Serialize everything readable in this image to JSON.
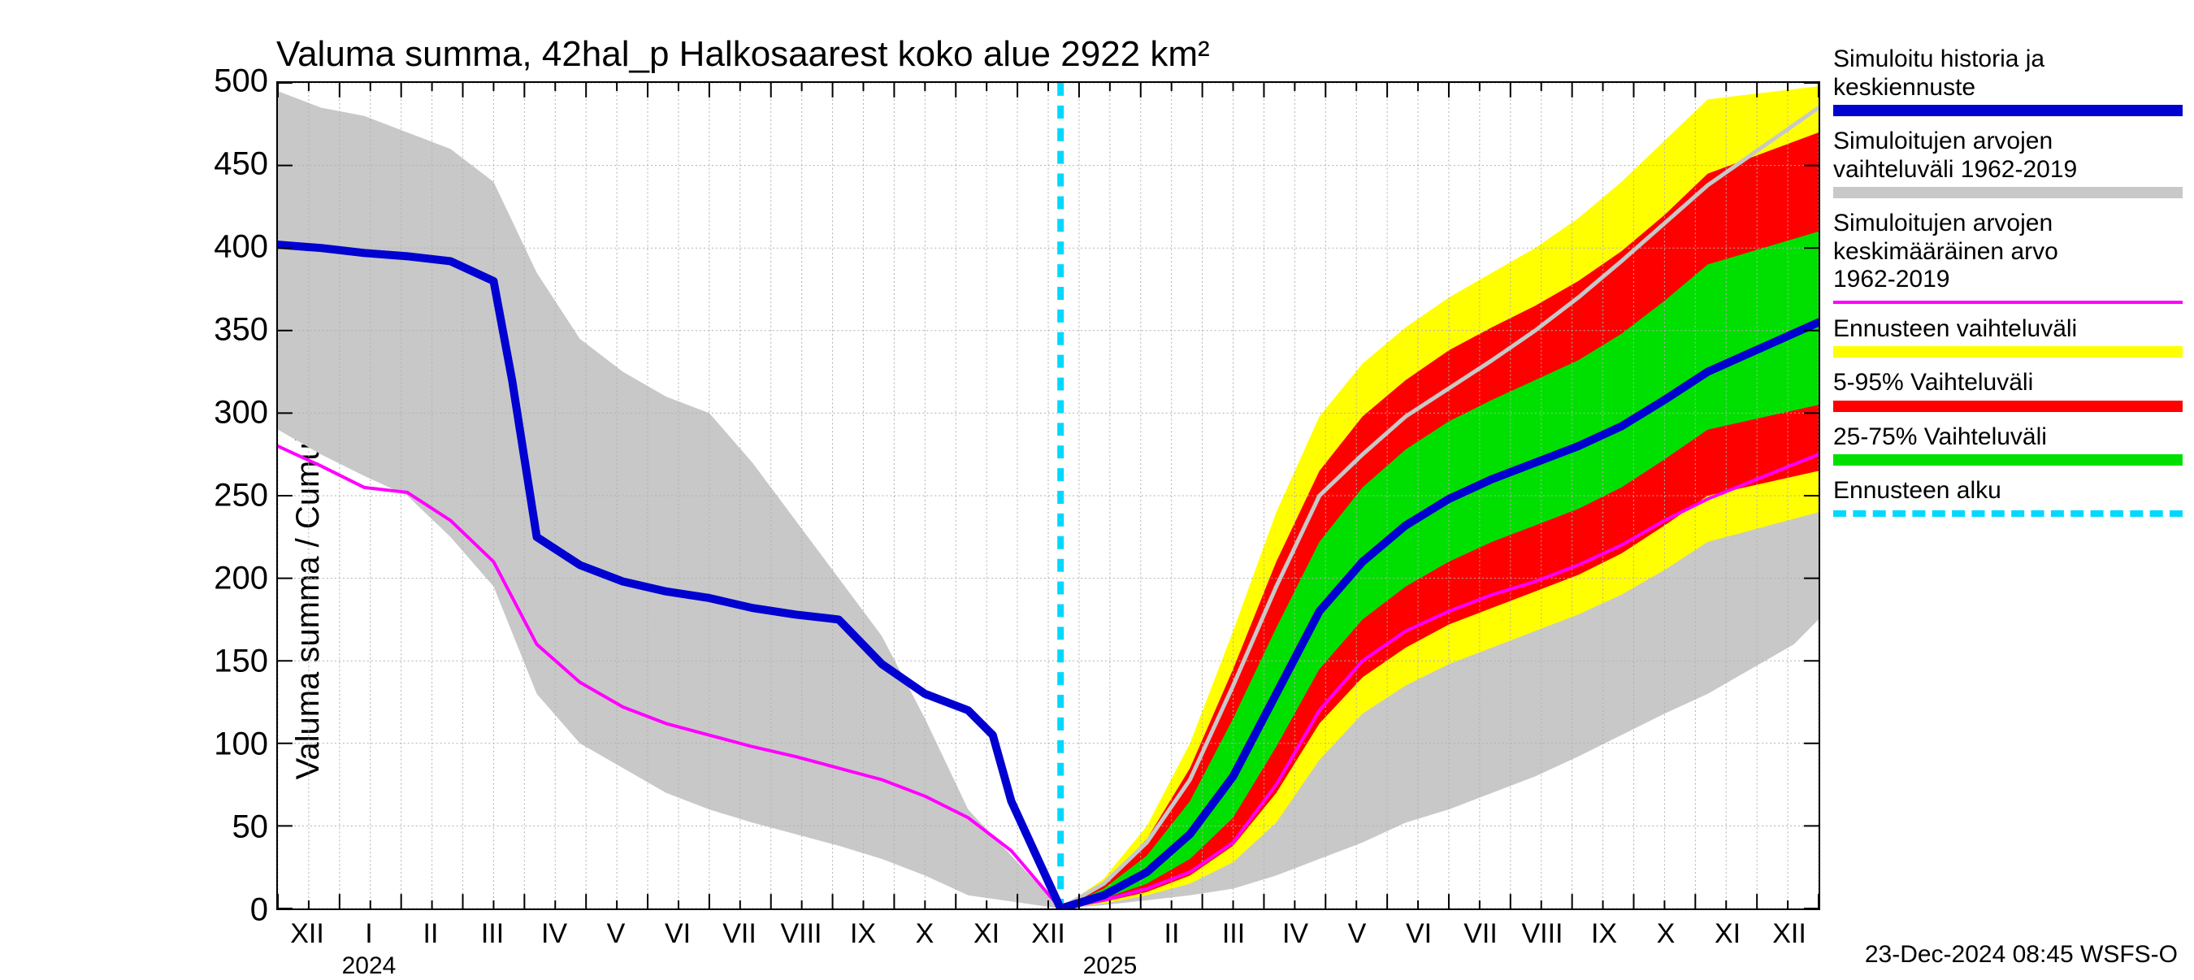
{
  "chart": {
    "type": "line-area",
    "title": "Valuma summa, 42hal_p Halkosaarest koko alue 2922 km²",
    "ylabel": "Valuma summa / Cumulative runoff     mm",
    "title_fontsize": 44,
    "label_fontsize": 40,
    "tick_fontsize": 40,
    "xtick_fontsize": 34,
    "background_color": "#ffffff",
    "grid_color": "#b0b0b0",
    "border_color": "#000000",
    "ylim": [
      0,
      500
    ],
    "yticks": [
      0,
      50,
      100,
      150,
      200,
      250,
      300,
      350,
      400,
      450,
      500
    ],
    "x_index_range": [
      0,
      25
    ],
    "x_labels": [
      "XII",
      "I",
      "II",
      "III",
      "IV",
      "V",
      "VI",
      "VII",
      "VIII",
      "IX",
      "X",
      "XI",
      "XII",
      "I",
      "II",
      "III",
      "IV",
      "V",
      "VI",
      "VII",
      "VIII",
      "IX",
      "X",
      "XI",
      "XII"
    ],
    "year_labels": [
      {
        "label": "2024",
        "x_index": 1.5
      },
      {
        "label": "2025",
        "x_index": 13.5
      }
    ],
    "forecast_start_index": 12.7,
    "series": {
      "history_range": {
        "type": "band",
        "color": "#c8c8c8",
        "upper": [
          495,
          485,
          480,
          470,
          460,
          440,
          385,
          345,
          325,
          310,
          300,
          270,
          235,
          200,
          165,
          115,
          60,
          0,
          15,
          40,
          78,
          135,
          195,
          250,
          275,
          298,
          315,
          332,
          350,
          370,
          392,
          415,
          438,
          460,
          485,
          498
        ],
        "lower": [
          290,
          275,
          262,
          250,
          225,
          195,
          130,
          100,
          85,
          70,
          60,
          52,
          45,
          38,
          30,
          20,
          8,
          0,
          2,
          5,
          8,
          12,
          20,
          30,
          40,
          52,
          60,
          70,
          80,
          92,
          105,
          118,
          130,
          145,
          160,
          175
        ],
        "x": [
          0,
          0.7,
          1.4,
          2.1,
          2.8,
          3.5,
          4.2,
          4.9,
          5.6,
          6.3,
          7.0,
          7.7,
          8.4,
          9.1,
          9.8,
          10.5,
          11.2,
          12.7,
          13.4,
          14.1,
          14.8,
          15.5,
          16.2,
          16.9,
          17.6,
          18.3,
          19.0,
          19.7,
          20.4,
          21.1,
          21.8,
          22.5,
          23.2,
          23.9,
          24.6,
          25.0
        ]
      },
      "forecast_full": {
        "type": "band",
        "color": "#ffff00",
        "upper": [
          0,
          18,
          50,
          100,
          168,
          240,
          298,
          330,
          352,
          370,
          385,
          400,
          418,
          440,
          465,
          490,
          498
        ],
        "lower": [
          0,
          3,
          8,
          15,
          28,
          52,
          90,
          118,
          135,
          148,
          158,
          168,
          178,
          190,
          205,
          222,
          240
        ],
        "x": [
          12.7,
          13.4,
          14.1,
          14.8,
          15.5,
          16.2,
          16.9,
          17.6,
          18.3,
          19.0,
          19.7,
          20.4,
          21.1,
          21.8,
          22.5,
          23.2,
          25.0
        ]
      },
      "forecast_5_95": {
        "type": "band",
        "color": "#ff0000",
        "upper": [
          0,
          15,
          42,
          85,
          145,
          210,
          265,
          298,
          320,
          338,
          352,
          365,
          380,
          398,
          420,
          445,
          470
        ],
        "lower": [
          0,
          4,
          10,
          20,
          38,
          70,
          112,
          140,
          158,
          172,
          182,
          192,
          202,
          215,
          232,
          250,
          265
        ],
        "x": [
          12.7,
          13.4,
          14.1,
          14.8,
          15.5,
          16.2,
          16.9,
          17.6,
          18.3,
          19.0,
          19.7,
          20.4,
          21.1,
          21.8,
          22.5,
          23.2,
          25.0
        ]
      },
      "forecast_25_75": {
        "type": "band",
        "color": "#00e000",
        "upper": [
          0,
          12,
          32,
          65,
          115,
          170,
          222,
          255,
          278,
          295,
          308,
          320,
          332,
          348,
          368,
          390,
          410
        ],
        "lower": [
          0,
          6,
          15,
          30,
          55,
          98,
          145,
          175,
          195,
          210,
          222,
          232,
          242,
          255,
          272,
          290,
          305
        ],
        "x": [
          12.7,
          13.4,
          14.1,
          14.8,
          15.5,
          16.2,
          16.9,
          17.6,
          18.3,
          19.0,
          19.7,
          20.4,
          21.1,
          21.8,
          22.5,
          23.2,
          25.0
        ]
      },
      "history_upper_line": {
        "type": "line",
        "color": "#c8c8c8",
        "width": 5,
        "x": [
          12.7,
          13.4,
          14.1,
          14.8,
          15.5,
          16.2,
          16.9,
          17.6,
          18.3,
          19.0,
          19.7,
          20.4,
          21.1,
          21.8,
          22.5,
          23.2,
          25.0
        ],
        "y": [
          0,
          15,
          40,
          78,
          135,
          195,
          250,
          275,
          298,
          315,
          332,
          350,
          370,
          392,
          415,
          438,
          485
        ]
      },
      "mean_history": {
        "type": "line",
        "color": "#ff00ff",
        "width": 4,
        "x": [
          0,
          0.7,
          1.4,
          2.1,
          2.8,
          3.5,
          4.2,
          4.9,
          5.6,
          6.3,
          7.0,
          7.7,
          8.4,
          9.1,
          9.8,
          10.5,
          11.2,
          11.9,
          12.7,
          13.4,
          14.1,
          14.8,
          15.5,
          16.2,
          16.9,
          17.6,
          18.3,
          19.0,
          19.7,
          20.4,
          21.1,
          21.8,
          22.5,
          23.2,
          25.0
        ],
        "y": [
          280,
          268,
          255,
          252,
          235,
          210,
          160,
          137,
          122,
          112,
          105,
          98,
          92,
          85,
          78,
          68,
          55,
          35,
          0,
          5,
          12,
          22,
          40,
          75,
          120,
          150,
          168,
          180,
          190,
          198,
          208,
          220,
          235,
          248,
          275
        ]
      },
      "simulated": {
        "type": "line",
        "color": "#0000d0",
        "width": 10,
        "x": [
          0,
          0.7,
          1.4,
          2.1,
          2.8,
          3.5,
          3.8,
          4.2,
          4.9,
          5.6,
          6.3,
          7.0,
          7.7,
          8.4,
          9.1,
          9.8,
          10.5,
          11.2,
          11.6,
          11.9,
          12.7,
          13.4,
          14.1,
          14.8,
          15.5,
          16.2,
          16.9,
          17.6,
          18.3,
          19.0,
          19.7,
          20.4,
          21.1,
          21.8,
          22.5,
          23.2,
          25.0
        ],
        "y": [
          402,
          400,
          397,
          395,
          392,
          380,
          320,
          225,
          208,
          198,
          192,
          188,
          182,
          178,
          175,
          148,
          130,
          120,
          105,
          65,
          0,
          8,
          22,
          45,
          80,
          130,
          180,
          210,
          232,
          248,
          260,
          270,
          280,
          292,
          308,
          325,
          355
        ]
      },
      "forecast_start": {
        "type": "vline",
        "color": "#00d8ff",
        "width": 8,
        "dash": "16 12",
        "x": 12.7
      }
    },
    "footer": "23-Dec-2024 08:45 WSFS-O"
  },
  "legend": {
    "items": [
      {
        "label_lines": [
          "Simuloitu historia ja",
          "keskiennuste"
        ],
        "color": "#0000d0",
        "style": "thick"
      },
      {
        "label_lines": [
          "Simuloitujen arvojen",
          "vaihteluväli 1962-2019"
        ],
        "color": "#c8c8c8",
        "style": "thick"
      },
      {
        "label_lines": [
          "Simuloitujen arvojen",
          "keskimääräinen arvo",
          "  1962-2019"
        ],
        "color": "#ff00ff",
        "style": "thin"
      },
      {
        "label_lines": [
          "Ennusteen vaihteluväli"
        ],
        "color": "#ffff00",
        "style": "thick"
      },
      {
        "label_lines": [
          "5-95% Vaihteluväli"
        ],
        "color": "#ff0000",
        "style": "thick"
      },
      {
        "label_lines": [
          "25-75% Vaihteluväli"
        ],
        "color": "#00e000",
        "style": "thick"
      },
      {
        "label_lines": [
          "Ennusteen alku"
        ],
        "color": "#00d8ff",
        "style": "dashed"
      }
    ]
  }
}
